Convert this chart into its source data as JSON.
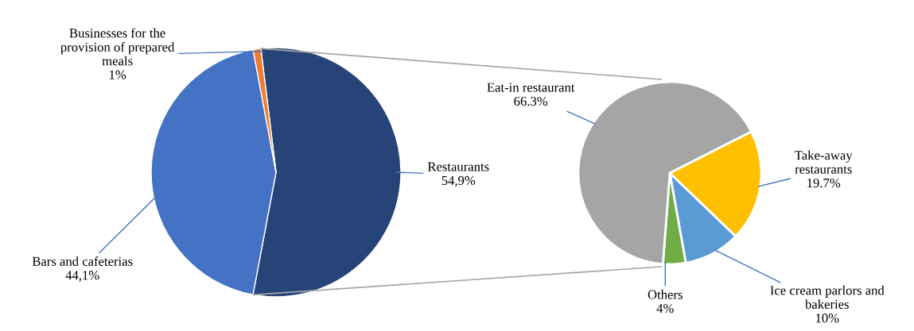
{
  "chart_data": [
    {
      "type": "pie",
      "categories": [
        "Restaurants",
        "Bars and cafeterias",
        "Businesses for the\nprovision of prepared\nmeals"
      ],
      "values": [
        54.9,
        44.1,
        1
      ],
      "colors": [
        "#264478",
        "#4472c4",
        "#ed7d31"
      ],
      "value_labels": [
        "54,9%",
        "44,1%",
        "1%"
      ]
    },
    {
      "type": "pie",
      "categories": [
        "Take-away\nrestaurants",
        "Ice cream parlors and\nbakeries",
        "Others",
        "Eat-in restaurant"
      ],
      "values": [
        19.7,
        10,
        4,
        66.3
      ],
      "colors": [
        "#ffc000",
        "#5b9bd5",
        "#70ad47",
        "#a5a5a5"
      ],
      "value_labels": [
        "19.7%",
        "10%",
        "4%",
        "66.3%"
      ]
    }
  ]
}
